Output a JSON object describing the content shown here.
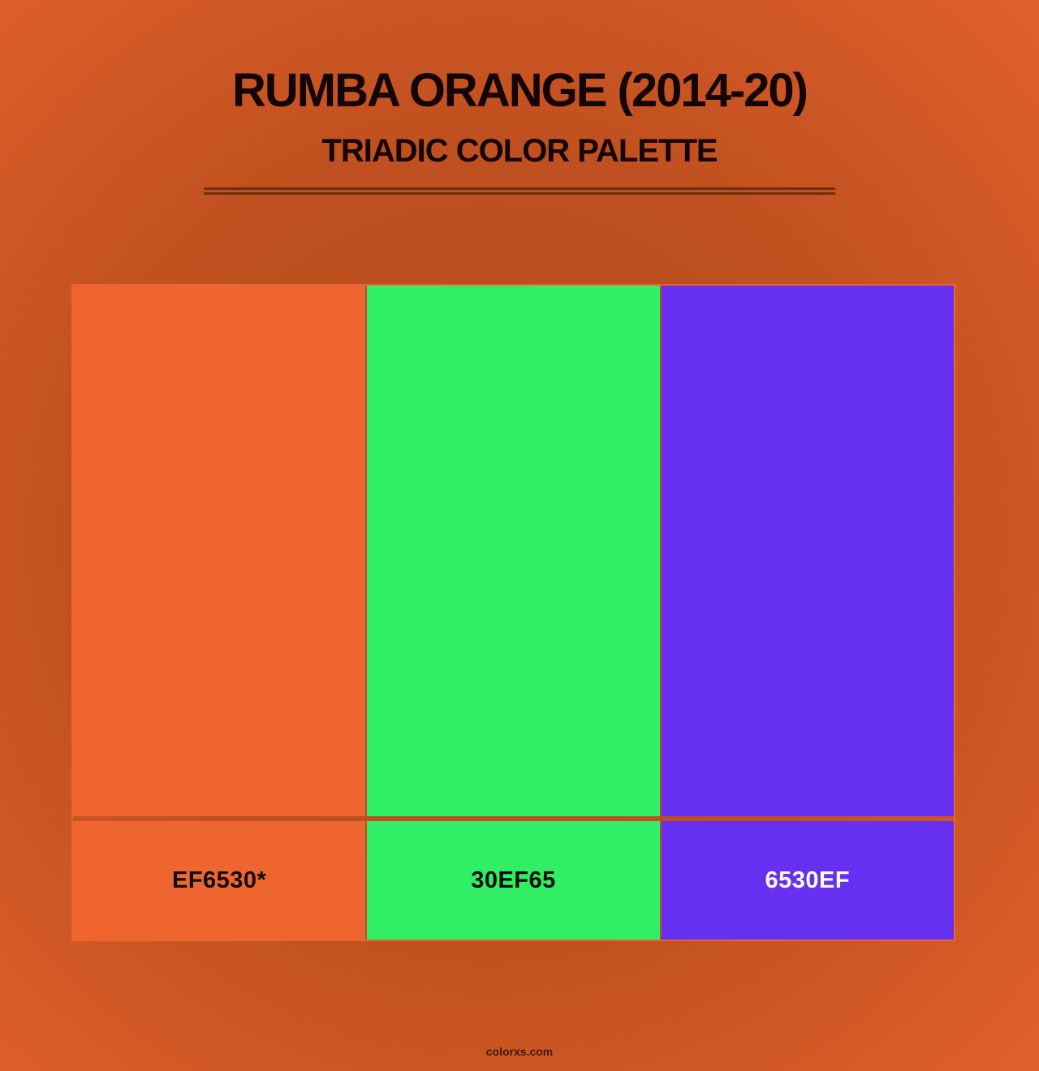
{
  "page": {
    "title": "RUMBA ORANGE (2014-20)",
    "subtitle": "TRIADIC COLOR PALETTE",
    "watermark": "colorxs.com"
  },
  "palette": {
    "type": "triadic",
    "swatches": [
      {
        "label": "EF6530*",
        "hex": "#EF6530",
        "label_color": "#0E0B08"
      },
      {
        "label": "30EF65",
        "hex": "#30EF65",
        "label_color": "#0E0B08"
      },
      {
        "label": "6530EF",
        "hex": "#6530EF",
        "label_color": "#FCFAFF"
      }
    ]
  },
  "colors": {
    "background_edge": "#DF602C",
    "background_mid": "#C25120",
    "background_center": "#AC4819",
    "divider": "#6E2E10",
    "heading_text": "#140404",
    "watermark_text": "#3E1A06",
    "panel_border": "#EE6430"
  }
}
